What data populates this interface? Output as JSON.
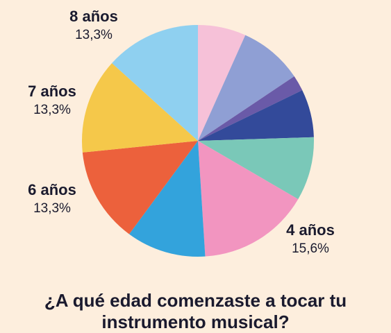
{
  "chart_data": {
    "type": "pie",
    "title": "¿A qué edad comenzaste a tocar tu instrumento musical?",
    "categories": [
      null,
      null,
      null,
      null,
      null,
      "4 años",
      null,
      "6 años",
      "7 años",
      "8 años"
    ],
    "values": [
      6.7,
      8.9,
      2.2,
      6.7,
      8.9,
      15.6,
      11.1,
      13.3,
      13.3,
      13.3
    ],
    "value_labels": [
      null,
      null,
      null,
      null,
      null,
      "15,6%",
      null,
      "13,3%",
      "13,3%",
      "13,3%"
    ],
    "colors": [
      "#f6c1d8",
      "#8f9fd4",
      "#6a5aa8",
      "#334a9a",
      "#7ac8b8",
      "#f295c0",
      "#33a3dc",
      "#ec613c",
      "#f5c84a",
      "#8fd0f0"
    ]
  }
}
